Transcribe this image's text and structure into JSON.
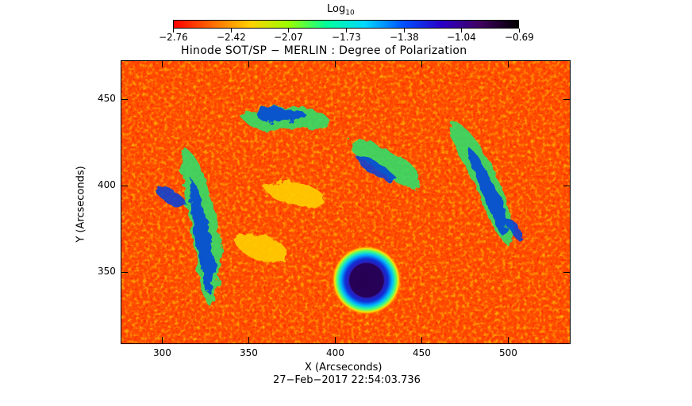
{
  "colorbar": {
    "title": "Log",
    "title_subscript": "10",
    "tick_labels": [
      "−2.76",
      "−2.42",
      "−2.07",
      "−1.73",
      "−1.38",
      "−1.04",
      "−0.69"
    ],
    "colors": [
      "#ff0000",
      "#ff6a00",
      "#ffd000",
      "#9cff00",
      "#00ff9c",
      "#00d8ff",
      "#0050ff",
      "#2a00c8",
      "#400060",
      "#000000"
    ]
  },
  "plot": {
    "title": "Hinode SOT/SP − MERLIN : Degree of Polarization",
    "x_label": "X (Arcseconds)",
    "y_label": "Y (Arcseconds)",
    "x_ticks": [
      "300",
      "350",
      "400",
      "450",
      "500"
    ],
    "y_ticks": [
      "450",
      "400",
      "350"
    ],
    "timestamp": "27−Feb−2017 22:54:03.736"
  }
}
